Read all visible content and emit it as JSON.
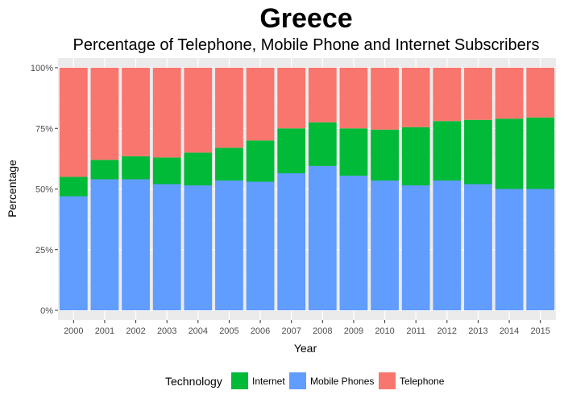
{
  "chart_data": {
    "type": "bar",
    "stacked": true,
    "title": "Greece",
    "subtitle": "Percentage of Telephone, Mobile Phone and Internet Subscribers",
    "xlabel": "Year",
    "ylabel": "Percentage",
    "ylim": [
      0,
      1
    ],
    "y_ticks": [
      "0%",
      "25%",
      "50%",
      "75%",
      "100%"
    ],
    "grid": true,
    "legend_title": "Technology",
    "legend_position": "bottom",
    "categories": [
      "2000",
      "2001",
      "2002",
      "2003",
      "2004",
      "2005",
      "2006",
      "2007",
      "2008",
      "2009",
      "2010",
      "2011",
      "2012",
      "2013",
      "2014",
      "2015"
    ],
    "series": [
      {
        "name": "Mobile Phones",
        "color": "#619CFF",
        "values": [
          0.47,
          0.54,
          0.54,
          0.52,
          0.515,
          0.535,
          0.53,
          0.565,
          0.595,
          0.555,
          0.535,
          0.515,
          0.535,
          0.52,
          0.5,
          0.5
        ]
      },
      {
        "name": "Internet",
        "color": "#00BA38",
        "values": [
          0.08,
          0.08,
          0.095,
          0.11,
          0.135,
          0.135,
          0.17,
          0.185,
          0.18,
          0.195,
          0.21,
          0.24,
          0.245,
          0.265,
          0.29,
          0.295
        ]
      },
      {
        "name": "Telephone",
        "color": "#F8766D",
        "values": [
          0.45,
          0.38,
          0.365,
          0.37,
          0.35,
          0.33,
          0.3,
          0.25,
          0.225,
          0.25,
          0.255,
          0.245,
          0.22,
          0.215,
          0.21,
          0.205
        ]
      }
    ],
    "legend_order": [
      "Internet",
      "Mobile Phones",
      "Telephone"
    ]
  }
}
